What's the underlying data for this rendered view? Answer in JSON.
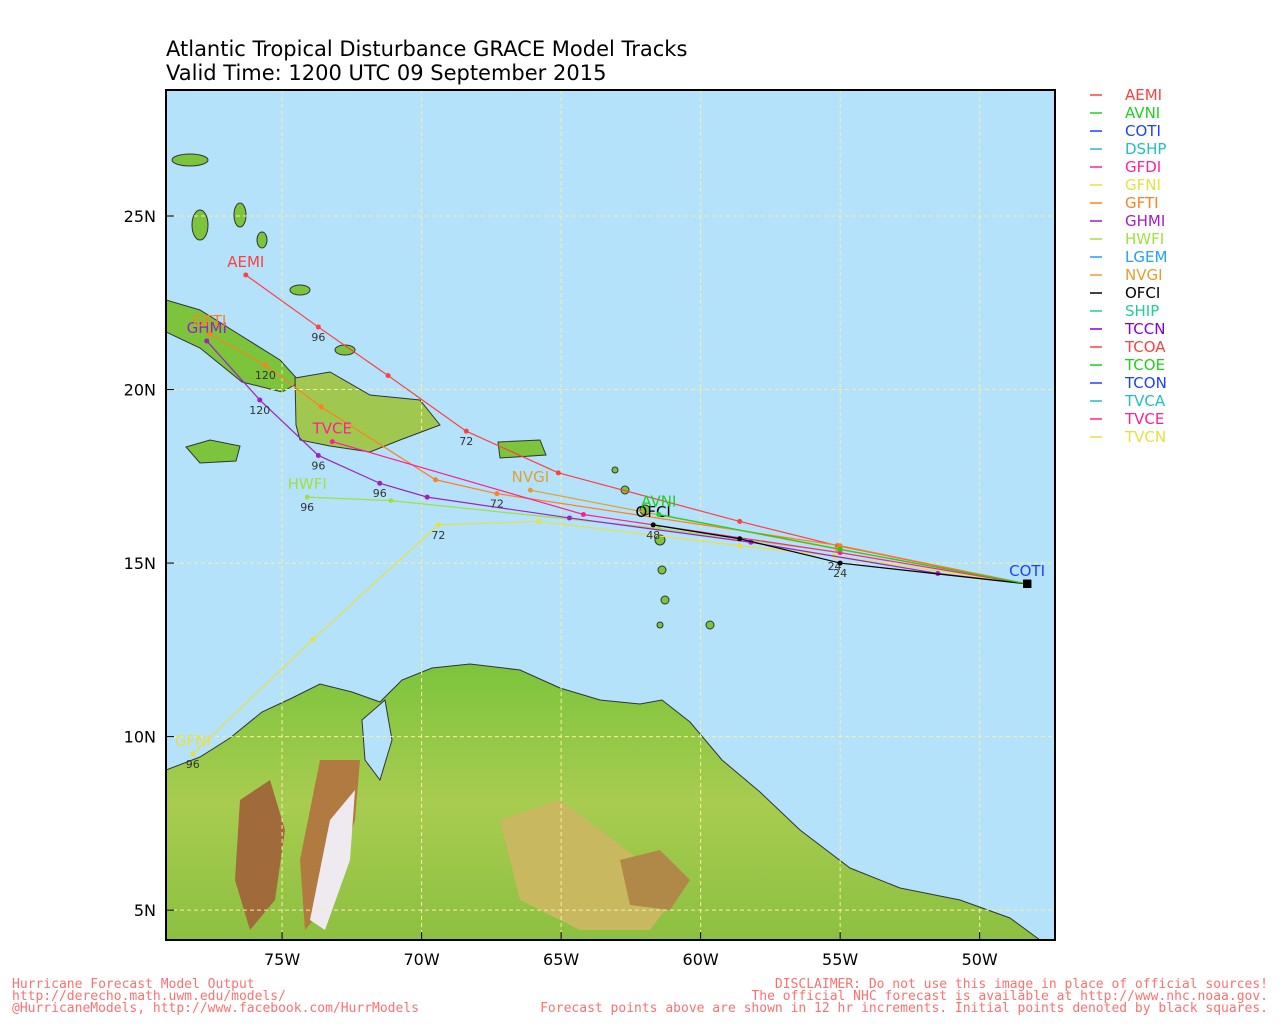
{
  "map": {
    "title": [
      "Atlantic Tropical Disturbance GRACE Model Tracks",
      "Valid Time: 1200 UTC 09 September 2015"
    ],
    "lonlim": [
      -79.16,
      -47.3
    ],
    "latlim": [
      4.14,
      28.63
    ],
    "lon_ticks": [
      {
        "value": -75,
        "label": "75W"
      },
      {
        "value": -70,
        "label": "70W"
      },
      {
        "value": -65,
        "label": "65W"
      },
      {
        "value": -60,
        "label": "60W"
      },
      {
        "value": -55,
        "label": "55W"
      },
      {
        "value": -50,
        "label": "50W"
      }
    ],
    "lat_ticks": [
      {
        "value": 25,
        "label": "25N"
      },
      {
        "value": 20,
        "label": "20N"
      },
      {
        "value": 15,
        "label": "15N"
      },
      {
        "value": 10,
        "label": "10N"
      },
      {
        "value": 5,
        "label": "5N"
      }
    ],
    "legend": [
      {
        "name": "AEMI",
        "color": "#ff4040"
      },
      {
        "name": "AVNI",
        "color": "#20d020"
      },
      {
        "name": "COTI",
        "color": "#2040ff"
      },
      {
        "name": "DSHP",
        "color": "#20c0c0"
      },
      {
        "name": "GFDI",
        "color": "#ff20a0"
      },
      {
        "name": "GFNI",
        "color": "#e8e040"
      },
      {
        "name": "GFTI",
        "color": "#ff8020"
      },
      {
        "name": "GHMI",
        "color": "#a020c0"
      },
      {
        "name": "HWFI",
        "color": "#a0e040"
      },
      {
        "name": "LGEM",
        "color": "#20a0ff"
      },
      {
        "name": "NVGI",
        "color": "#e0a030"
      },
      {
        "name": "OFCI",
        "color": "#000000"
      },
      {
        "name": "SHIP",
        "color": "#20d090"
      },
      {
        "name": "TCCN",
        "color": "#8000e0"
      },
      {
        "name": "TCOA",
        "color": "#ff4040"
      },
      {
        "name": "TCOE",
        "color": "#20d020"
      },
      {
        "name": "TCON",
        "color": "#2040ff"
      },
      {
        "name": "TVCA",
        "color": "#20c0c0"
      },
      {
        "name": "TVCE",
        "color": "#ff2090"
      },
      {
        "name": "TVCN",
        "color": "#e8e040"
      }
    ],
    "tracks": [
      {
        "label": "AEMI",
        "color": "#ff4040",
        "lon": [
          -48.3,
          -55.1,
          -58.6,
          -65.1,
          -68.4,
          -71.2,
          -73.7,
          -76.3
        ],
        "lat": [
          14.4,
          15.5,
          16.2,
          17.6,
          18.8,
          20.4,
          21.8,
          23.3
        ],
        "point_labels": [
          null,
          null,
          null,
          null,
          "72",
          null,
          "96",
          null
        ]
      },
      {
        "label": "GFNI",
        "color": "#e8e040",
        "lon": [
          -48.3,
          -55.2,
          -58.6,
          -65.8,
          -69.4,
          -73.9,
          -78.2
        ],
        "lat": [
          14.4,
          15.2,
          15.5,
          16.2,
          16.1,
          12.8,
          9.5
        ],
        "point_labels": [
          null,
          "24",
          null,
          null,
          "72",
          null,
          "96"
        ]
      },
      {
        "label": "HWFI",
        "color": "#a0e040",
        "lon": [
          -48.3,
          -55.0,
          -61.5,
          -71.1,
          -74.1
        ],
        "lat": [
          14.4,
          15.3,
          16.0,
          16.8,
          16.9
        ],
        "point_labels": [
          null,
          null,
          null,
          null,
          "96"
        ]
      },
      {
        "label": "GHMI",
        "color": "#a020c0",
        "lon": [
          -48.3,
          -51.5,
          -58.2,
          -64.7,
          -69.8,
          -71.5,
          -73.7,
          -75.8,
          -77.7
        ],
        "lat": [
          14.4,
          14.7,
          15.6,
          16.3,
          16.9,
          17.3,
          18.1,
          19.7,
          21.4
        ],
        "point_labels": [
          null,
          null,
          null,
          null,
          null,
          "96",
          "96",
          "120",
          null
        ]
      },
      {
        "label": "GFTI",
        "color": "#ff8020",
        "lon": [
          -48.3,
          -55.0,
          -67.3,
          -69.5,
          -73.6,
          -75.6,
          -77.6
        ],
        "lat": [
          14.4,
          15.5,
          17.0,
          17.4,
          19.5,
          20.7,
          21.6
        ],
        "point_labels": [
          null,
          null,
          "72",
          null,
          null,
          "120",
          null
        ]
      },
      {
        "label": "NVGI",
        "color": "#e0a030",
        "lon": [
          -48.3,
          -55.1,
          -66.1
        ],
        "lat": [
          14.4,
          15.4,
          17.1
        ],
        "point_labels": [
          null,
          null,
          null
        ]
      },
      {
        "label": "TVCE",
        "color": "#ff2090",
        "lon": [
          -48.3,
          -55.0,
          -64.2,
          -73.2
        ],
        "lat": [
          14.4,
          15.3,
          16.4,
          18.5
        ],
        "point_labels": [
          null,
          null,
          null,
          null
        ]
      },
      {
        "label": "OFCI",
        "color": "#000000",
        "lon": [
          -48.3,
          -55.0,
          -58.6,
          -61.7
        ],
        "lat": [
          14.4,
          15.0,
          15.7,
          16.1
        ],
        "point_labels": [
          null,
          "24",
          null,
          "48"
        ]
      },
      {
        "label": "AVNI",
        "color": "#20d020",
        "lon": [
          -48.3,
          -55.0,
          -61.5
        ],
        "lat": [
          14.4,
          15.4,
          16.4
        ],
        "point_labels": [
          null,
          null,
          null
        ]
      },
      {
        "label": "COTI",
        "color": "#2040ff",
        "lon": [
          -48.3
        ],
        "lat": [
          14.4
        ],
        "point_labels": [
          null
        ]
      }
    ],
    "footer_left": [
      "Hurricane Forecast Model Output",
      "http://derecho.math.uwm.edu/models/",
      "@HurricaneModels, http://www.facebook.com/HurrModels"
    ],
    "footer_right": [
      "DISCLAIMER: Do not use this image in place of official sources!",
      "The official NHC forecast is available at http://www.nhc.noaa.gov.",
      "Forecast points above are shown in 12 hr increments. Initial points denoted by black squares."
    ]
  }
}
